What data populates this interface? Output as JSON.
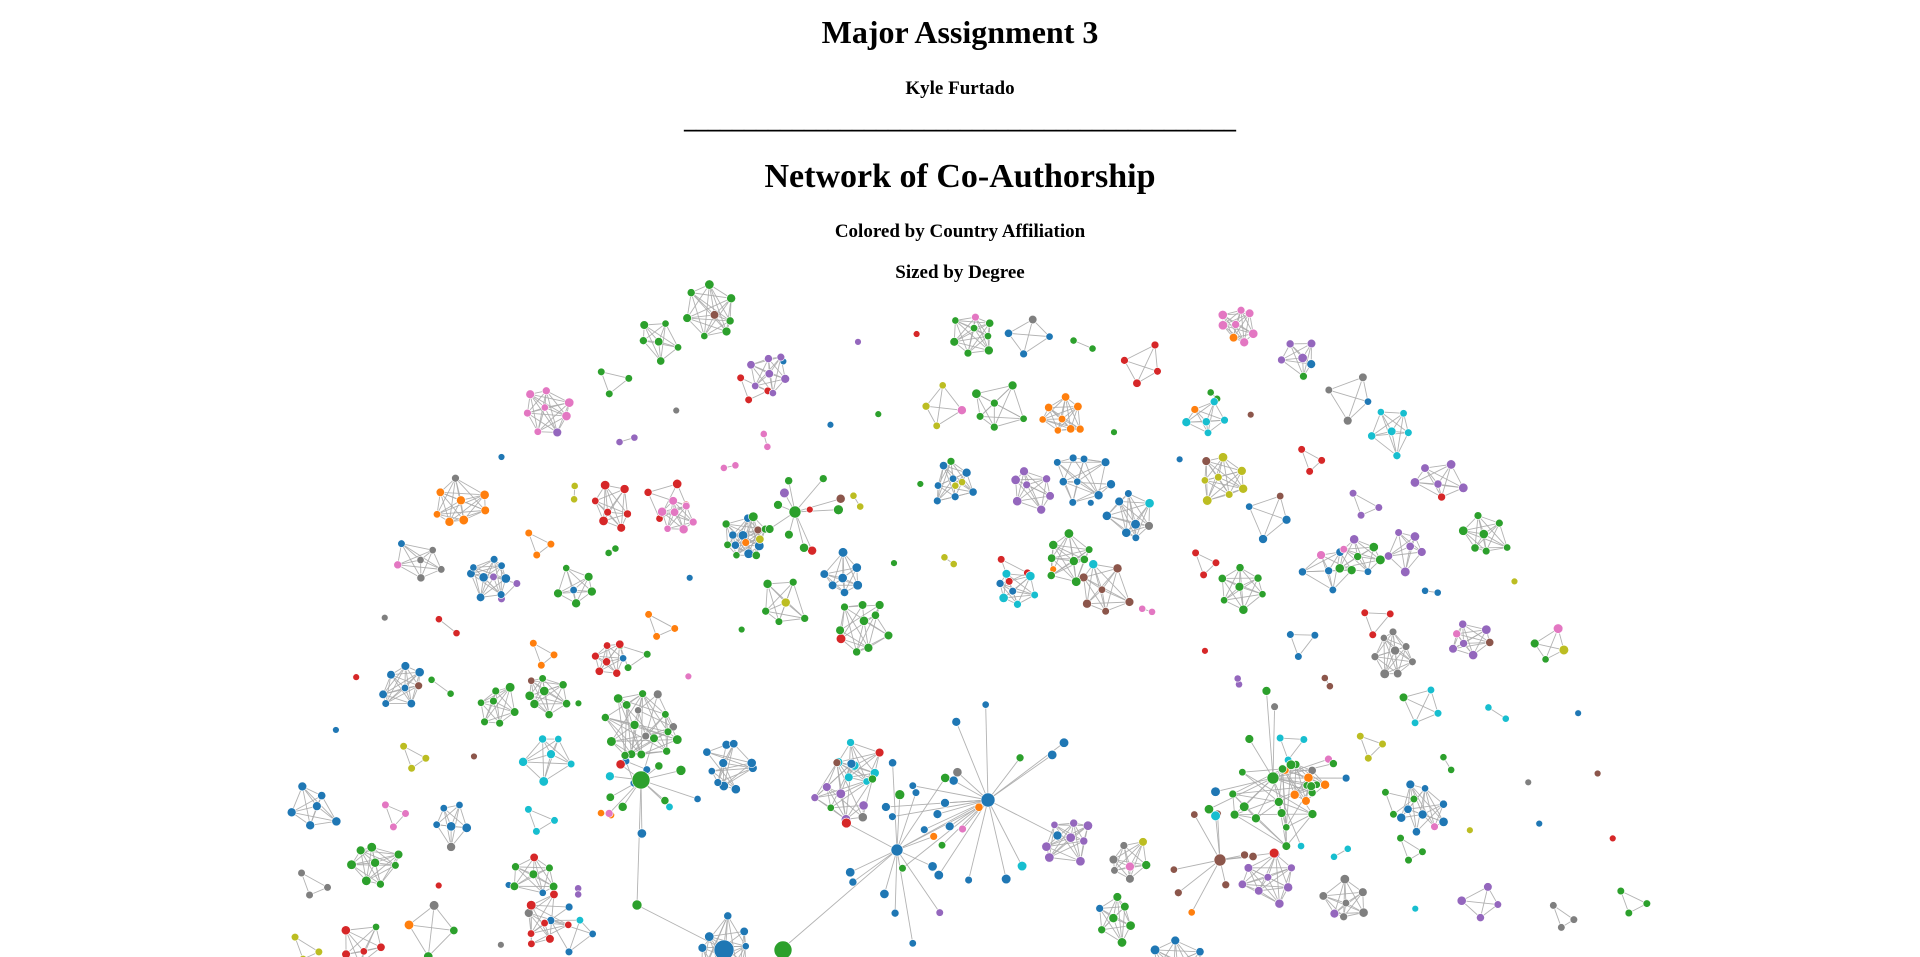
{
  "header": {
    "title": "Major Assignment 3",
    "author": "Kyle Furtado",
    "rule": "______________________________________________"
  },
  "graph_section": {
    "title": "Network of Co-Authorship",
    "subtitle_color": "Colored by Country Affiliation",
    "subtitle_size": "Sized by Degree"
  },
  "palette": {
    "blue": "#1f77b4",
    "orange": "#ff7f0e",
    "green": "#2ca02c",
    "red": "#d62728",
    "purple": "#9467bd",
    "brown": "#8c564b",
    "pink": "#e377c2",
    "gray": "#7f7f7f",
    "olive": "#bcbd22",
    "cyan": "#17becf",
    "edge": "#aaaaaa"
  }
}
